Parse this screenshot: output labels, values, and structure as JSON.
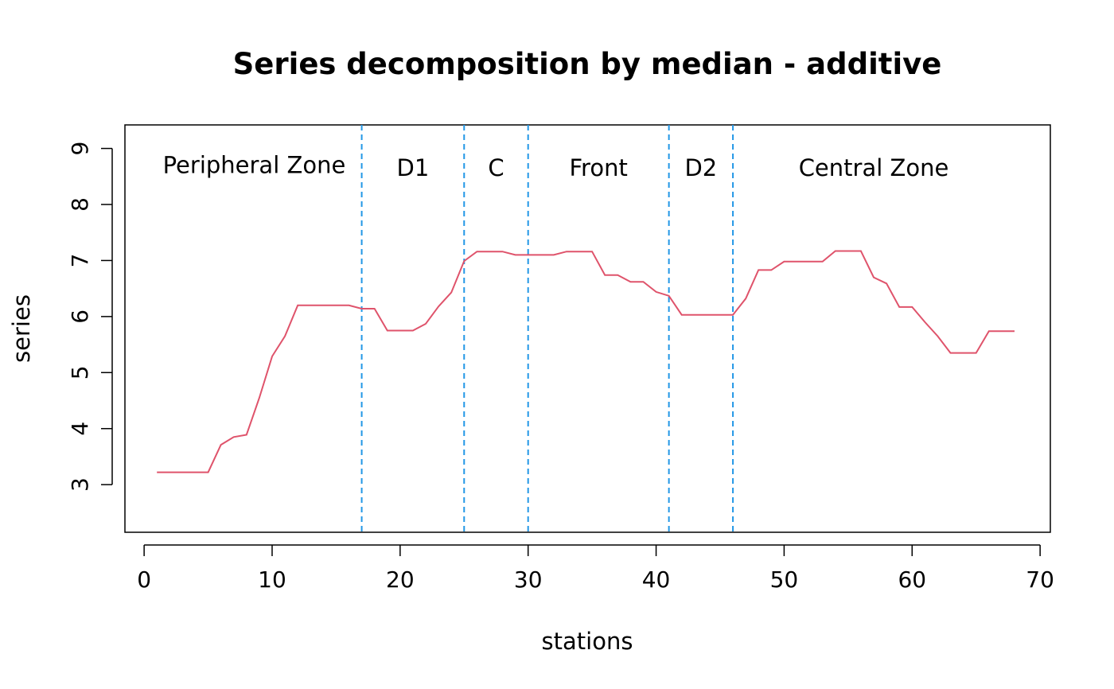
{
  "chart_data": {
    "type": "line",
    "title": "Series decomposition by median - additive",
    "xlabel": "stations",
    "ylabel": "series",
    "xlim": [
      -1.5,
      70.8
    ],
    "ylim": [
      2.15,
      9.42
    ],
    "x_ticks": [
      0,
      10,
      20,
      30,
      40,
      50,
      60,
      70
    ],
    "y_ticks": [
      3,
      4,
      5,
      6,
      7,
      8,
      9
    ],
    "grid": false,
    "series": [
      {
        "color": "#DF536B",
        "x": [
          1,
          2,
          3,
          4,
          5,
          6,
          7,
          8,
          9,
          10,
          11,
          12,
          13,
          14,
          15,
          16,
          17,
          18,
          19,
          20,
          21,
          22,
          23,
          24,
          25,
          26,
          27,
          28,
          29,
          30,
          31,
          32,
          33,
          34,
          35,
          36,
          37,
          38,
          39,
          40,
          41,
          42,
          43,
          44,
          45,
          46,
          47,
          48,
          49,
          50,
          51,
          52,
          53,
          54,
          55,
          56,
          57,
          58,
          59,
          60,
          61,
          62,
          63,
          64,
          65,
          66,
          67,
          68
        ],
        "y": [
          3.22,
          3.22,
          3.22,
          3.22,
          3.22,
          3.71,
          3.85,
          3.89,
          4.55,
          5.29,
          5.65,
          6.2,
          6.2,
          6.2,
          6.2,
          6.2,
          6.14,
          6.14,
          5.75,
          5.75,
          5.75,
          5.87,
          6.18,
          6.43,
          6.99,
          7.16,
          7.16,
          7.16,
          7.1,
          7.1,
          7.1,
          7.1,
          7.16,
          7.16,
          7.16,
          6.74,
          6.74,
          6.62,
          6.62,
          6.44,
          6.37,
          6.03,
          6.03,
          6.03,
          6.03,
          6.03,
          6.32,
          6.83,
          6.83,
          6.98,
          6.98,
          6.98,
          6.98,
          7.17,
          7.17,
          7.17,
          6.7,
          6.59,
          6.17,
          6.17,
          5.9,
          5.65,
          5.35,
          5.35,
          5.35,
          5.74,
          5.74,
          5.74
        ]
      }
    ],
    "vlines": {
      "color": "#2297E6",
      "style": "dashed",
      "x": [
        17,
        25,
        30,
        41,
        46
      ]
    },
    "annotations": [
      {
        "text": "Peripheral Zone",
        "x": 8.6,
        "y": 8.7
      },
      {
        "text": "D1",
        "x": 21,
        "y": 8.65
      },
      {
        "text": "C",
        "x": 27.5,
        "y": 8.65
      },
      {
        "text": "Front",
        "x": 35.5,
        "y": 8.65
      },
      {
        "text": "D2",
        "x": 43.5,
        "y": 8.65
      },
      {
        "text": "Central Zone",
        "x": 57,
        "y": 8.65
      }
    ]
  }
}
